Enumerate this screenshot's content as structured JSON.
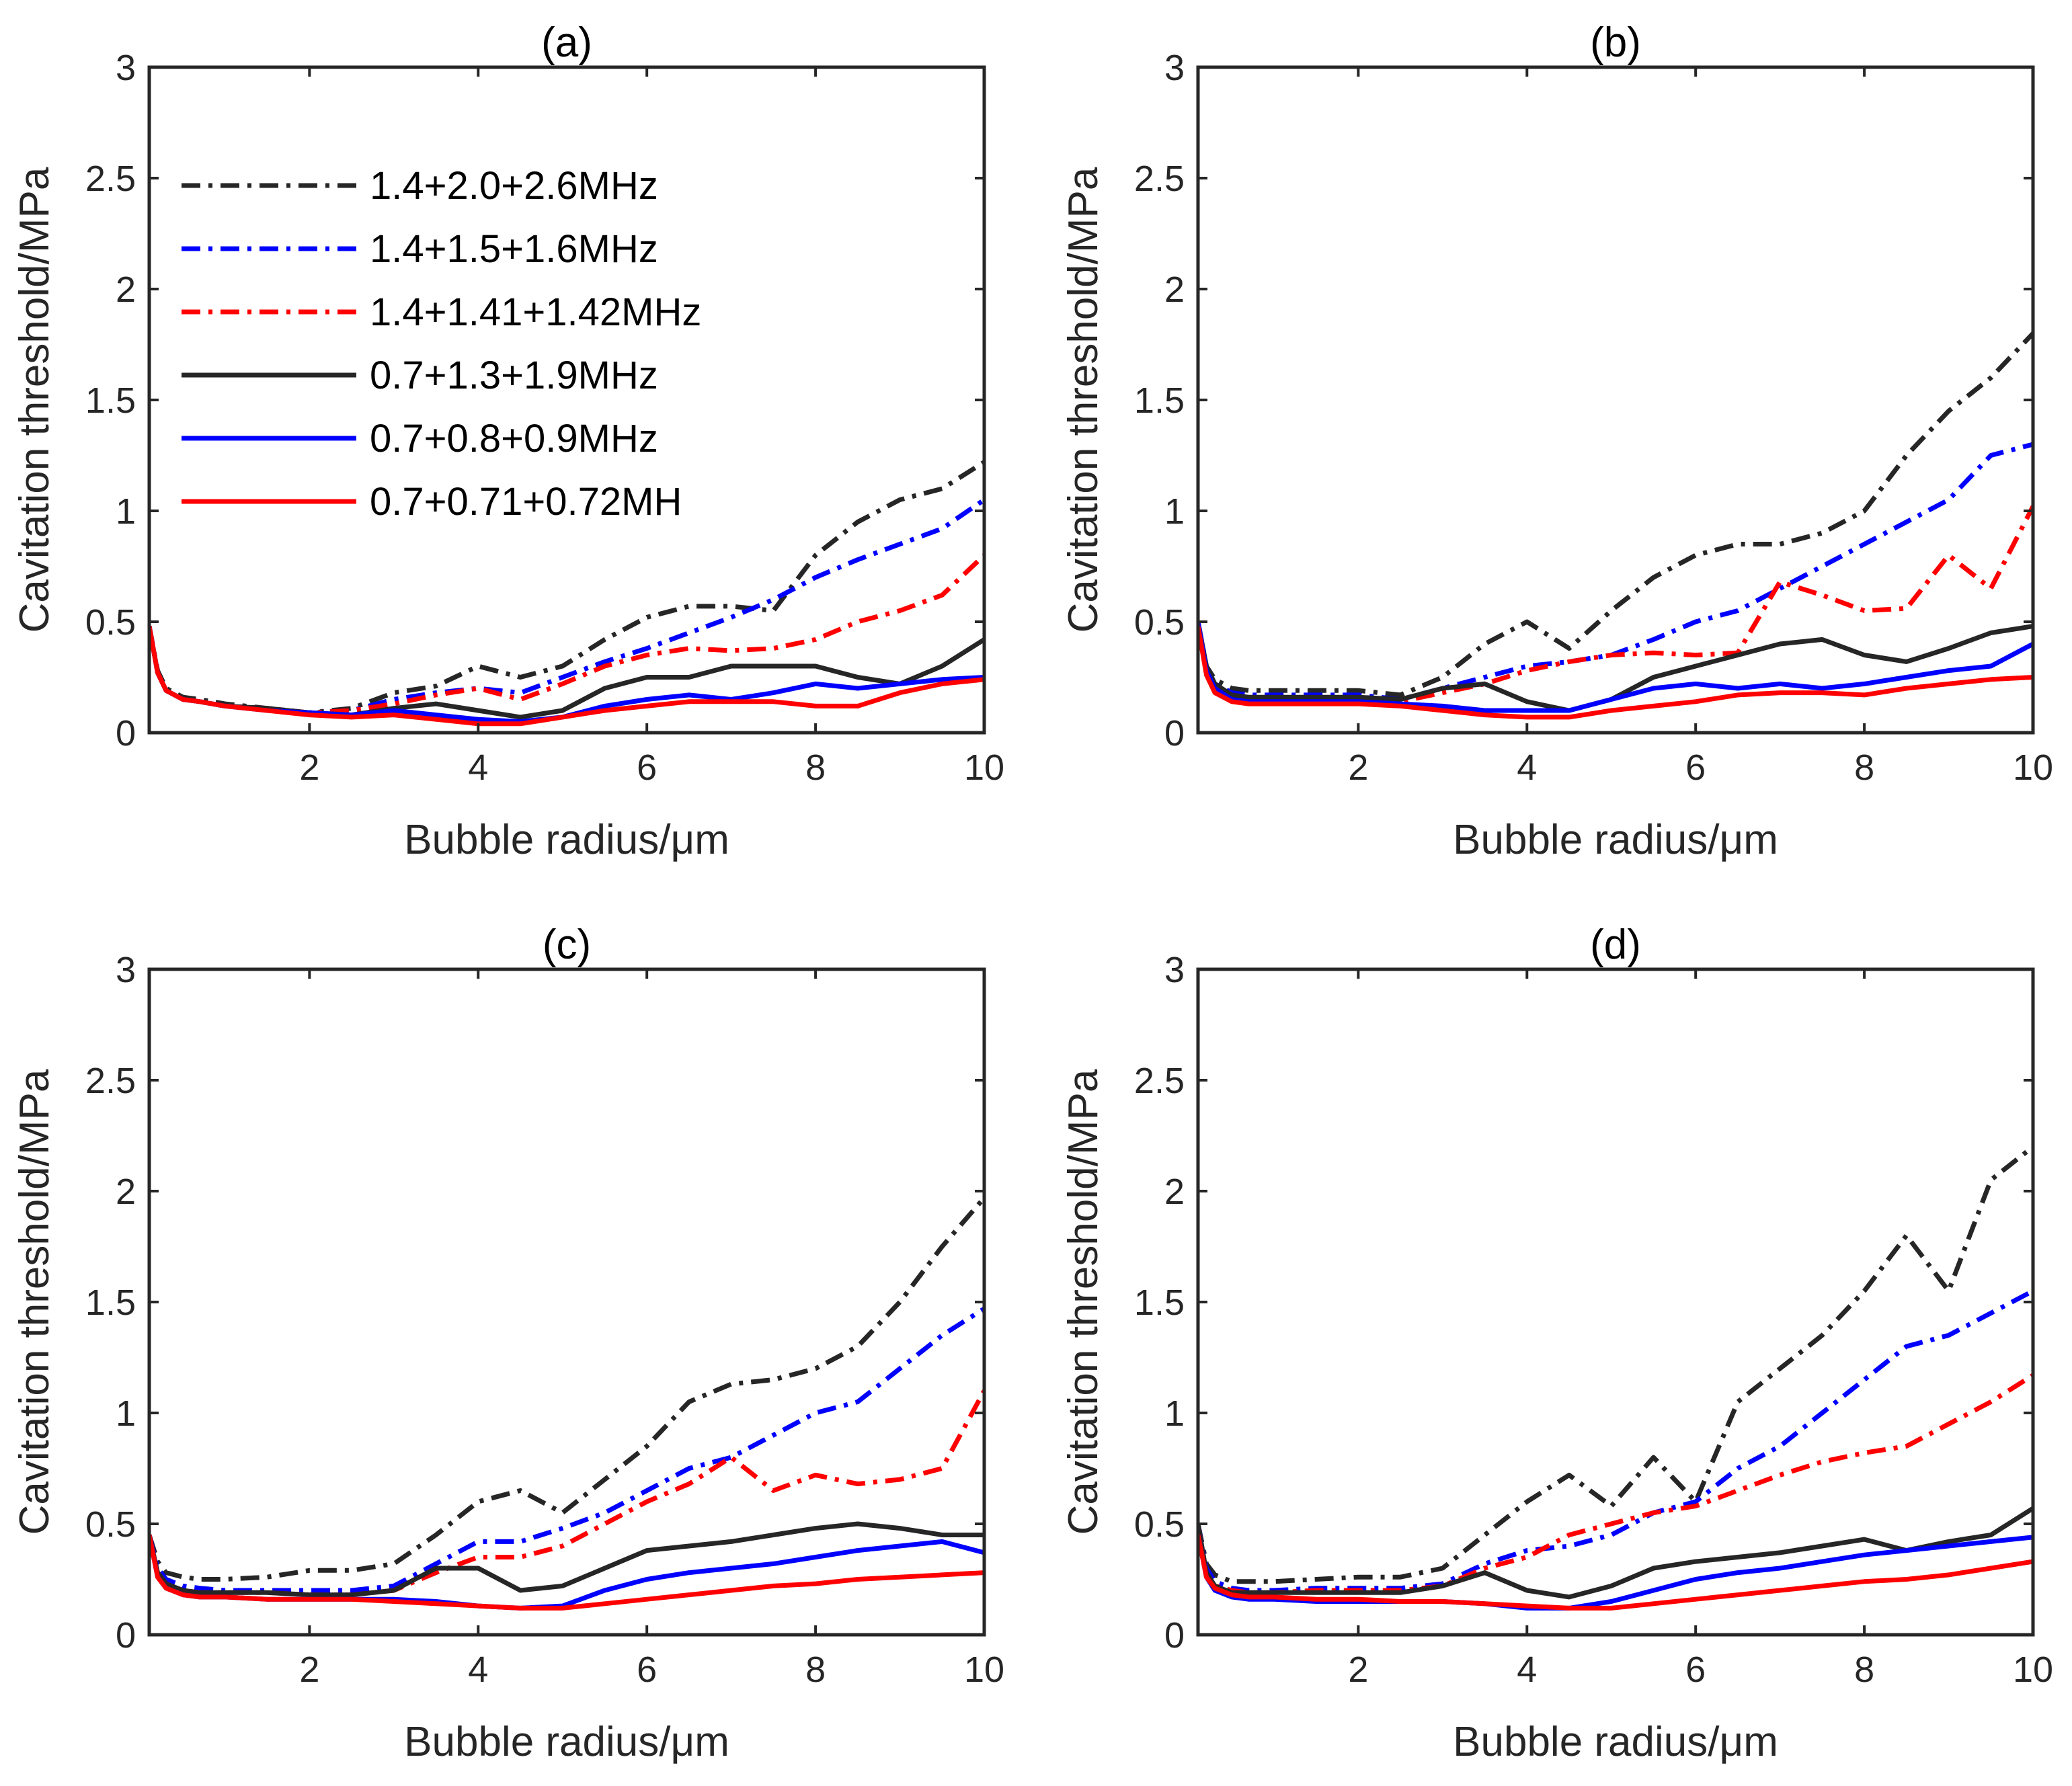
{
  "figure": {
    "panels": [
      "(a)",
      "(b)",
      "(c)",
      "(d)"
    ]
  },
  "styles": {
    "colors": {
      "black": "#262626",
      "blue": "#0000ff",
      "red": "#ff0000"
    },
    "dashdot": "28,12,6,12"
  },
  "chart_data": [
    {
      "type": "line",
      "title": "(a)",
      "xlabel": "Bubble radius/μm",
      "ylabel": "Cavitation threshold/MPa",
      "xlim": [
        0.1,
        10
      ],
      "ylim": [
        0,
        3
      ],
      "xticks": [
        2,
        4,
        6,
        8,
        10
      ],
      "yticks": [
        0,
        0.5,
        1,
        1.5,
        2,
        2.5,
        3
      ],
      "xtick_labels": [
        "2",
        "4",
        "6",
        "8",
        "10"
      ],
      "ytick_labels": [
        "0",
        "0.5",
        "1",
        "1.5",
        "2",
        "2.5",
        "3"
      ],
      "legend": {
        "location": "upper-left"
      },
      "x": [
        0.1,
        0.2,
        0.3,
        0.5,
        0.7,
        1,
        1.5,
        2,
        2.5,
        3,
        3.5,
        4,
        4.5,
        5,
        5.5,
        6,
        6.5,
        7,
        7.5,
        8,
        8.5,
        9,
        9.5,
        10
      ],
      "series": [
        {
          "name": "1.4+2.0+2.6MHz",
          "color": "black",
          "style": "dashdot",
          "values": [
            0.48,
            0.28,
            0.2,
            0.16,
            0.15,
            0.13,
            0.11,
            0.09,
            0.11,
            0.18,
            0.21,
            0.3,
            0.25,
            0.3,
            0.42,
            0.52,
            0.57,
            0.57,
            0.55,
            0.8,
            0.95,
            1.05,
            1.1,
            1.22
          ]
        },
        {
          "name": "1.4+1.5+1.6MHz",
          "color": "blue",
          "style": "dashdot",
          "values": [
            0.48,
            0.27,
            0.19,
            0.15,
            0.14,
            0.12,
            0.11,
            0.09,
            0.1,
            0.15,
            0.18,
            0.2,
            0.18,
            0.25,
            0.32,
            0.38,
            0.45,
            0.52,
            0.6,
            0.7,
            0.78,
            0.85,
            0.92,
            1.05
          ]
        },
        {
          "name": "1.4+1.41+1.42MHz",
          "color": "red",
          "style": "dashdot",
          "values": [
            0.48,
            0.27,
            0.19,
            0.15,
            0.14,
            0.12,
            0.11,
            0.09,
            0.1,
            0.13,
            0.17,
            0.2,
            0.15,
            0.22,
            0.3,
            0.35,
            0.38,
            0.37,
            0.38,
            0.42,
            0.5,
            0.55,
            0.62,
            0.8
          ]
        },
        {
          "name": "0.7+1.3+1.9MHz",
          "color": "black",
          "style": "solid",
          "values": [
            0.48,
            0.27,
            0.19,
            0.15,
            0.14,
            0.12,
            0.11,
            0.09,
            0.08,
            0.11,
            0.13,
            0.1,
            0.07,
            0.1,
            0.2,
            0.25,
            0.25,
            0.3,
            0.3,
            0.3,
            0.25,
            0.22,
            0.3,
            0.42
          ]
        },
        {
          "name": "0.7+0.8+0.9MHz",
          "color": "blue",
          "style": "solid",
          "values": [
            0.48,
            0.27,
            0.19,
            0.15,
            0.14,
            0.12,
            0.1,
            0.09,
            0.08,
            0.1,
            0.08,
            0.06,
            0.05,
            0.07,
            0.12,
            0.15,
            0.17,
            0.15,
            0.18,
            0.22,
            0.2,
            0.22,
            0.24,
            0.25
          ]
        },
        {
          "name": "0.7+0.71+0.72MH",
          "color": "red",
          "style": "solid",
          "values": [
            0.48,
            0.27,
            0.19,
            0.15,
            0.14,
            0.12,
            0.1,
            0.08,
            0.07,
            0.08,
            0.06,
            0.04,
            0.04,
            0.07,
            0.1,
            0.12,
            0.14,
            0.14,
            0.14,
            0.12,
            0.12,
            0.18,
            0.22,
            0.24
          ]
        }
      ]
    },
    {
      "type": "line",
      "title": "(b)",
      "xlabel": "Bubble radius/μm",
      "ylabel": "Cavitation threshold/MPa",
      "xlim": [
        0.1,
        10
      ],
      "ylim": [
        0,
        3
      ],
      "xticks": [
        2,
        4,
        6,
        8,
        10
      ],
      "yticks": [
        0,
        0.5,
        1,
        1.5,
        2,
        2.5,
        3
      ],
      "xtick_labels": [
        "2",
        "4",
        "6",
        "8",
        "10"
      ],
      "ytick_labels": [
        "0",
        "0.5",
        "1",
        "1.5",
        "2",
        "2.5",
        "3"
      ],
      "x": [
        0.1,
        0.2,
        0.3,
        0.5,
        0.7,
        1,
        1.5,
        2,
        2.5,
        3,
        3.5,
        4,
        4.5,
        5,
        5.5,
        6,
        6.5,
        7,
        7.5,
        8,
        8.5,
        9,
        9.5,
        10
      ],
      "series": [
        {
          "name": "1.4+2.0+2.6MHz",
          "color": "black",
          "style": "dashdot",
          "values": [
            0.5,
            0.3,
            0.24,
            0.2,
            0.19,
            0.19,
            0.19,
            0.19,
            0.17,
            0.25,
            0.4,
            0.5,
            0.38,
            0.55,
            0.7,
            0.8,
            0.85,
            0.85,
            0.9,
            1.0,
            1.25,
            1.45,
            1.6,
            1.8
          ]
        },
        {
          "name": "1.4+1.5+1.6MHz",
          "color": "blue",
          "style": "dashdot",
          "values": [
            0.5,
            0.3,
            0.22,
            0.18,
            0.17,
            0.17,
            0.17,
            0.17,
            0.15,
            0.2,
            0.25,
            0.3,
            0.32,
            0.35,
            0.42,
            0.5,
            0.55,
            0.65,
            0.75,
            0.85,
            0.95,
            1.05,
            1.25,
            1.3
          ]
        },
        {
          "name": "1.4+1.41+1.42MHz",
          "color": "red",
          "style": "dashdot",
          "values": [
            0.5,
            0.28,
            0.2,
            0.16,
            0.15,
            0.15,
            0.15,
            0.15,
            0.14,
            0.18,
            0.22,
            0.28,
            0.32,
            0.35,
            0.36,
            0.35,
            0.36,
            0.68,
            0.62,
            0.55,
            0.56,
            0.8,
            0.65,
            1.02
          ]
        },
        {
          "name": "0.7+1.3+1.9MHz",
          "color": "black",
          "style": "solid",
          "values": [
            0.5,
            0.3,
            0.22,
            0.17,
            0.16,
            0.16,
            0.16,
            0.16,
            0.15,
            0.2,
            0.22,
            0.14,
            0.1,
            0.15,
            0.25,
            0.3,
            0.35,
            0.4,
            0.42,
            0.35,
            0.32,
            0.38,
            0.45,
            0.48
          ]
        },
        {
          "name": "0.7+0.8+0.9MHz",
          "color": "blue",
          "style": "solid",
          "values": [
            0.5,
            0.28,
            0.2,
            0.15,
            0.14,
            0.14,
            0.14,
            0.14,
            0.13,
            0.12,
            0.1,
            0.1,
            0.1,
            0.15,
            0.2,
            0.22,
            0.2,
            0.22,
            0.2,
            0.22,
            0.25,
            0.28,
            0.3,
            0.4
          ]
        },
        {
          "name": "0.7+0.71+0.72MH",
          "color": "red",
          "style": "solid",
          "values": [
            0.48,
            0.26,
            0.18,
            0.14,
            0.13,
            0.13,
            0.13,
            0.13,
            0.12,
            0.1,
            0.08,
            0.07,
            0.07,
            0.1,
            0.12,
            0.14,
            0.17,
            0.18,
            0.18,
            0.17,
            0.2,
            0.22,
            0.24,
            0.25
          ]
        }
      ]
    },
    {
      "type": "line",
      "title": "(c)",
      "xlabel": "Bubble radius/μm",
      "ylabel": "Cavitation threshold/MPa",
      "xlim": [
        0.1,
        10
      ],
      "ylim": [
        0,
        3
      ],
      "xticks": [
        2,
        4,
        6,
        8,
        10
      ],
      "yticks": [
        0,
        0.5,
        1,
        1.5,
        2,
        2.5,
        3
      ],
      "xtick_labels": [
        "2",
        "4",
        "6",
        "8",
        "10"
      ],
      "ytick_labels": [
        "0",
        "0.5",
        "1",
        "1.5",
        "2",
        "2.5",
        "3"
      ],
      "x": [
        0.1,
        0.2,
        0.3,
        0.5,
        0.7,
        1,
        1.5,
        2,
        2.5,
        3,
        3.5,
        4,
        4.5,
        5,
        5.5,
        6,
        6.5,
        7,
        7.5,
        8,
        8.5,
        9,
        9.5,
        10
      ],
      "series": [
        {
          "name": "1.4+2.0+2.6MHz",
          "color": "black",
          "style": "dashdot",
          "values": [
            0.45,
            0.33,
            0.28,
            0.26,
            0.25,
            0.25,
            0.26,
            0.29,
            0.29,
            0.32,
            0.45,
            0.6,
            0.65,
            0.55,
            0.7,
            0.85,
            1.05,
            1.13,
            1.15,
            1.2,
            1.3,
            1.5,
            1.75,
            1.97
          ]
        },
        {
          "name": "1.4+1.5+1.6MHz",
          "color": "blue",
          "style": "dashdot",
          "values": [
            0.45,
            0.3,
            0.25,
            0.22,
            0.21,
            0.2,
            0.2,
            0.2,
            0.2,
            0.22,
            0.32,
            0.42,
            0.42,
            0.48,
            0.55,
            0.65,
            0.75,
            0.8,
            0.9,
            1.0,
            1.05,
            1.2,
            1.35,
            1.47
          ]
        },
        {
          "name": "1.4+1.41+1.42MHz",
          "color": "red",
          "style": "dashdot",
          "values": [
            0.45,
            0.28,
            0.23,
            0.2,
            0.19,
            0.19,
            0.19,
            0.18,
            0.18,
            0.2,
            0.28,
            0.35,
            0.35,
            0.4,
            0.5,
            0.6,
            0.68,
            0.8,
            0.65,
            0.72,
            0.68,
            0.7,
            0.75,
            1.1
          ]
        },
        {
          "name": "0.7+1.3+1.9MHz",
          "color": "black",
          "style": "solid",
          "values": [
            0.45,
            0.28,
            0.23,
            0.2,
            0.19,
            0.19,
            0.19,
            0.18,
            0.18,
            0.2,
            0.3,
            0.3,
            0.2,
            0.22,
            0.3,
            0.38,
            0.4,
            0.42,
            0.45,
            0.48,
            0.5,
            0.48,
            0.45,
            0.45
          ]
        },
        {
          "name": "0.7+0.8+0.9MHz",
          "color": "blue",
          "style": "solid",
          "values": [
            0.45,
            0.26,
            0.21,
            0.18,
            0.17,
            0.17,
            0.16,
            0.16,
            0.16,
            0.16,
            0.15,
            0.13,
            0.12,
            0.13,
            0.2,
            0.25,
            0.28,
            0.3,
            0.32,
            0.35,
            0.38,
            0.4,
            0.42,
            0.37
          ]
        },
        {
          "name": "0.7+0.71+0.72MH",
          "color": "red",
          "style": "solid",
          "values": [
            0.45,
            0.26,
            0.21,
            0.18,
            0.17,
            0.17,
            0.16,
            0.16,
            0.16,
            0.15,
            0.14,
            0.13,
            0.12,
            0.12,
            0.14,
            0.16,
            0.18,
            0.2,
            0.22,
            0.23,
            0.25,
            0.26,
            0.27,
            0.28
          ]
        }
      ]
    },
    {
      "type": "line",
      "title": "(d)",
      "xlabel": "Bubble radius/μm",
      "ylabel": "Cavitation threshold/MPa",
      "xlim": [
        0.1,
        10
      ],
      "ylim": [
        0,
        3
      ],
      "xticks": [
        2,
        4,
        6,
        8,
        10
      ],
      "yticks": [
        0,
        0.5,
        1,
        1.5,
        2,
        2.5,
        3
      ],
      "xtick_labels": [
        "2",
        "4",
        "6",
        "8",
        "10"
      ],
      "ytick_labels": [
        "0",
        "0.5",
        "1",
        "1.5",
        "2",
        "2.5",
        "3"
      ],
      "x": [
        0.1,
        0.2,
        0.3,
        0.5,
        0.7,
        1,
        1.5,
        2,
        2.5,
        3,
        3.5,
        4,
        4.5,
        5,
        5.5,
        6,
        6.5,
        7,
        7.5,
        8,
        8.5,
        9,
        9.5,
        10
      ],
      "series": [
        {
          "name": "1.4+2.0+2.6MHz",
          "color": "black",
          "style": "dashdot",
          "values": [
            0.5,
            0.32,
            0.27,
            0.24,
            0.24,
            0.24,
            0.25,
            0.26,
            0.26,
            0.3,
            0.45,
            0.6,
            0.72,
            0.58,
            0.8,
            0.6,
            1.05,
            1.2,
            1.35,
            1.55,
            1.8,
            1.55,
            2.05,
            2.2
          ]
        },
        {
          "name": "1.4+1.5+1.6MHz",
          "color": "blue",
          "style": "dashdot",
          "values": [
            0.5,
            0.3,
            0.24,
            0.21,
            0.2,
            0.2,
            0.21,
            0.21,
            0.21,
            0.23,
            0.32,
            0.38,
            0.4,
            0.45,
            0.55,
            0.6,
            0.75,
            0.85,
            1.0,
            1.15,
            1.3,
            1.35,
            1.45,
            1.55
          ]
        },
        {
          "name": "1.4+1.41+1.42MHz",
          "color": "red",
          "style": "dashdot",
          "values": [
            0.5,
            0.28,
            0.22,
            0.2,
            0.19,
            0.19,
            0.2,
            0.2,
            0.2,
            0.22,
            0.3,
            0.35,
            0.45,
            0.5,
            0.55,
            0.58,
            0.65,
            0.72,
            0.78,
            0.82,
            0.85,
            0.95,
            1.05,
            1.17
          ]
        },
        {
          "name": "0.7+1.3+1.9MHz",
          "color": "black",
          "style": "solid",
          "values": [
            0.5,
            0.28,
            0.22,
            0.19,
            0.19,
            0.19,
            0.19,
            0.19,
            0.19,
            0.22,
            0.28,
            0.2,
            0.17,
            0.22,
            0.3,
            0.33,
            0.35,
            0.37,
            0.4,
            0.43,
            0.38,
            0.42,
            0.45,
            0.57
          ]
        },
        {
          "name": "0.7+0.8+0.9MHz",
          "color": "blue",
          "style": "solid",
          "values": [
            0.45,
            0.26,
            0.2,
            0.17,
            0.16,
            0.16,
            0.15,
            0.15,
            0.15,
            0.15,
            0.14,
            0.12,
            0.12,
            0.15,
            0.2,
            0.25,
            0.28,
            0.3,
            0.33,
            0.36,
            0.38,
            0.4,
            0.42,
            0.44
          ]
        },
        {
          "name": "0.7+0.71+0.72MH",
          "color": "red",
          "style": "solid",
          "values": [
            0.45,
            0.26,
            0.21,
            0.18,
            0.17,
            0.17,
            0.16,
            0.16,
            0.15,
            0.15,
            0.14,
            0.13,
            0.12,
            0.12,
            0.14,
            0.16,
            0.18,
            0.2,
            0.22,
            0.24,
            0.25,
            0.27,
            0.3,
            0.33
          ]
        }
      ]
    }
  ]
}
